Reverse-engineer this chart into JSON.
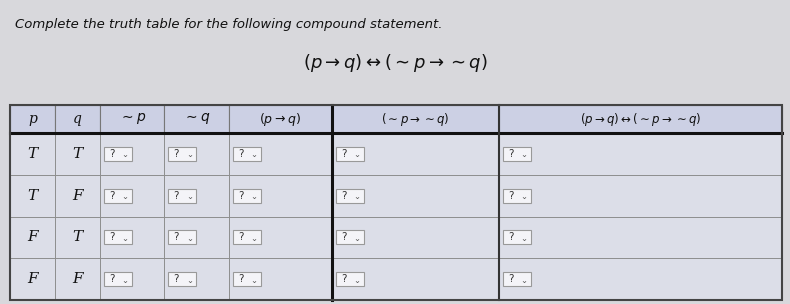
{
  "title_line1": "Complete the truth table for the following compound statement.",
  "title_line2": "$(p \\to q) \\leftrightarrow (\\sim p \\to \\sim q)$",
  "col_headers": [
    "p",
    "q",
    "$\\sim p$",
    "$\\sim q$",
    "$(p\\to q)$",
    "$(\\sim p\\to \\sim q)$",
    "$(p\\to q)\\leftrightarrow(\\sim p\\to \\sim q)$"
  ],
  "p_vals": [
    "T",
    "T",
    "F",
    "F"
  ],
  "q_vals": [
    "T",
    "F",
    "T",
    "F"
  ],
  "bg_color": "#e8e8ec",
  "header_bg": "#d0d4e8",
  "cell_bg": "#e0e4f0",
  "border_color": "#777777",
  "thick_border": "#222222",
  "text_color": "#111111",
  "title_color": "#111111",
  "dropdown_fill": "#f0f0f4",
  "dropdown_border": "#888888",
  "page_bg": "#e8e8ec"
}
